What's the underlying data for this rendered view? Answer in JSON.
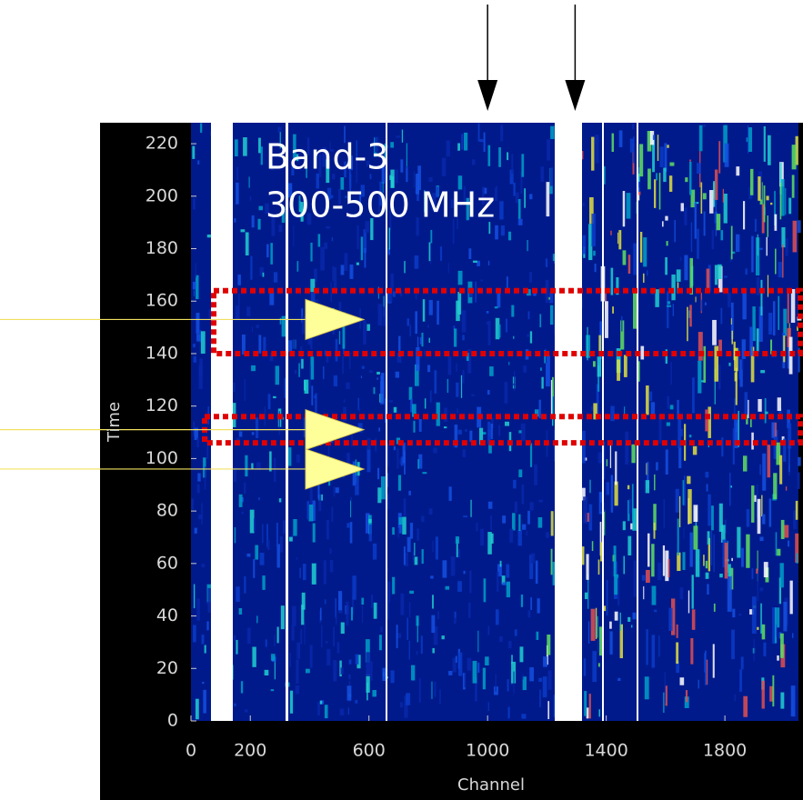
{
  "chart_data": {
    "type": "heatmap",
    "title": [
      "Band-3",
      "300-500 MHz"
    ],
    "xlabel": "Channel",
    "ylabel": "Time",
    "xlim": [
      0,
      2048
    ],
    "ylim": [
      0,
      228
    ],
    "xticks": [
      0,
      200,
      600,
      1000,
      1400,
      1800
    ],
    "yticks": [
      0,
      20,
      40,
      60,
      80,
      100,
      120,
      140,
      160,
      180,
      200,
      220
    ],
    "highlight_time_ranges": [
      [
        140,
        164
      ],
      [
        106,
        116
      ]
    ],
    "rfi_channels": [
      1000,
      1295
    ],
    "rfi_times": [
      153,
      111,
      96
    ]
  }
}
